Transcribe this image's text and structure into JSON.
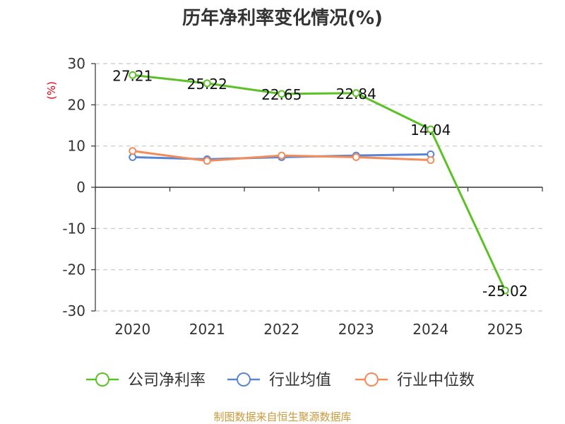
{
  "title": "历年净利率变化情况(%)",
  "source": "制图数据来自恒生聚源数据库",
  "chart_data": {
    "type": "line",
    "categories": [
      "2020",
      "2021",
      "2022",
      "2023",
      "2024",
      "2025"
    ],
    "ylabel": "(%)",
    "ylim": [
      -30,
      30
    ],
    "yticks": [
      30,
      20,
      10,
      0,
      -10,
      -20,
      -30
    ],
    "grid": true,
    "legend_position": "bottom",
    "series": [
      {
        "name": "公司净利率",
        "color": "#5cc126",
        "values": [
          27.21,
          25.22,
          22.65,
          22.84,
          14.04,
          -25.02
        ],
        "labels": [
          "27.21",
          "25.22",
          "22.65",
          "22.84",
          "14.04",
          "-25.02"
        ]
      },
      {
        "name": "行业均值",
        "color": "#5a85d5",
        "values": [
          7.3,
          6.8,
          7.3,
          7.7,
          8.0,
          null
        ]
      },
      {
        "name": "行业中位数",
        "color": "#f28c5a",
        "values": [
          8.8,
          6.4,
          7.7,
          7.3,
          6.6,
          null
        ]
      }
    ]
  }
}
